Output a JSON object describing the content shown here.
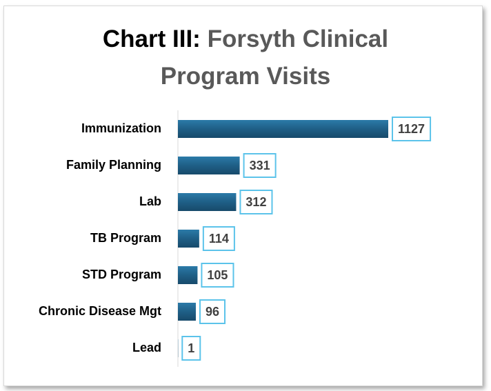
{
  "chart_data": {
    "type": "bar",
    "orientation": "horizontal",
    "title_label": "Chart III:",
    "title": "Forsyth Clinical Program Visits",
    "categories": [
      "Immunization",
      "Family Planning",
      "Lab",
      "TB Program",
      "STD Program",
      "Chronic Disease Mgt",
      "Lead"
    ],
    "values": [
      1127,
      331,
      312,
      114,
      105,
      96,
      1
    ],
    "color": "#1f5f86",
    "label_border_color": "#5bc3ea"
  }
}
